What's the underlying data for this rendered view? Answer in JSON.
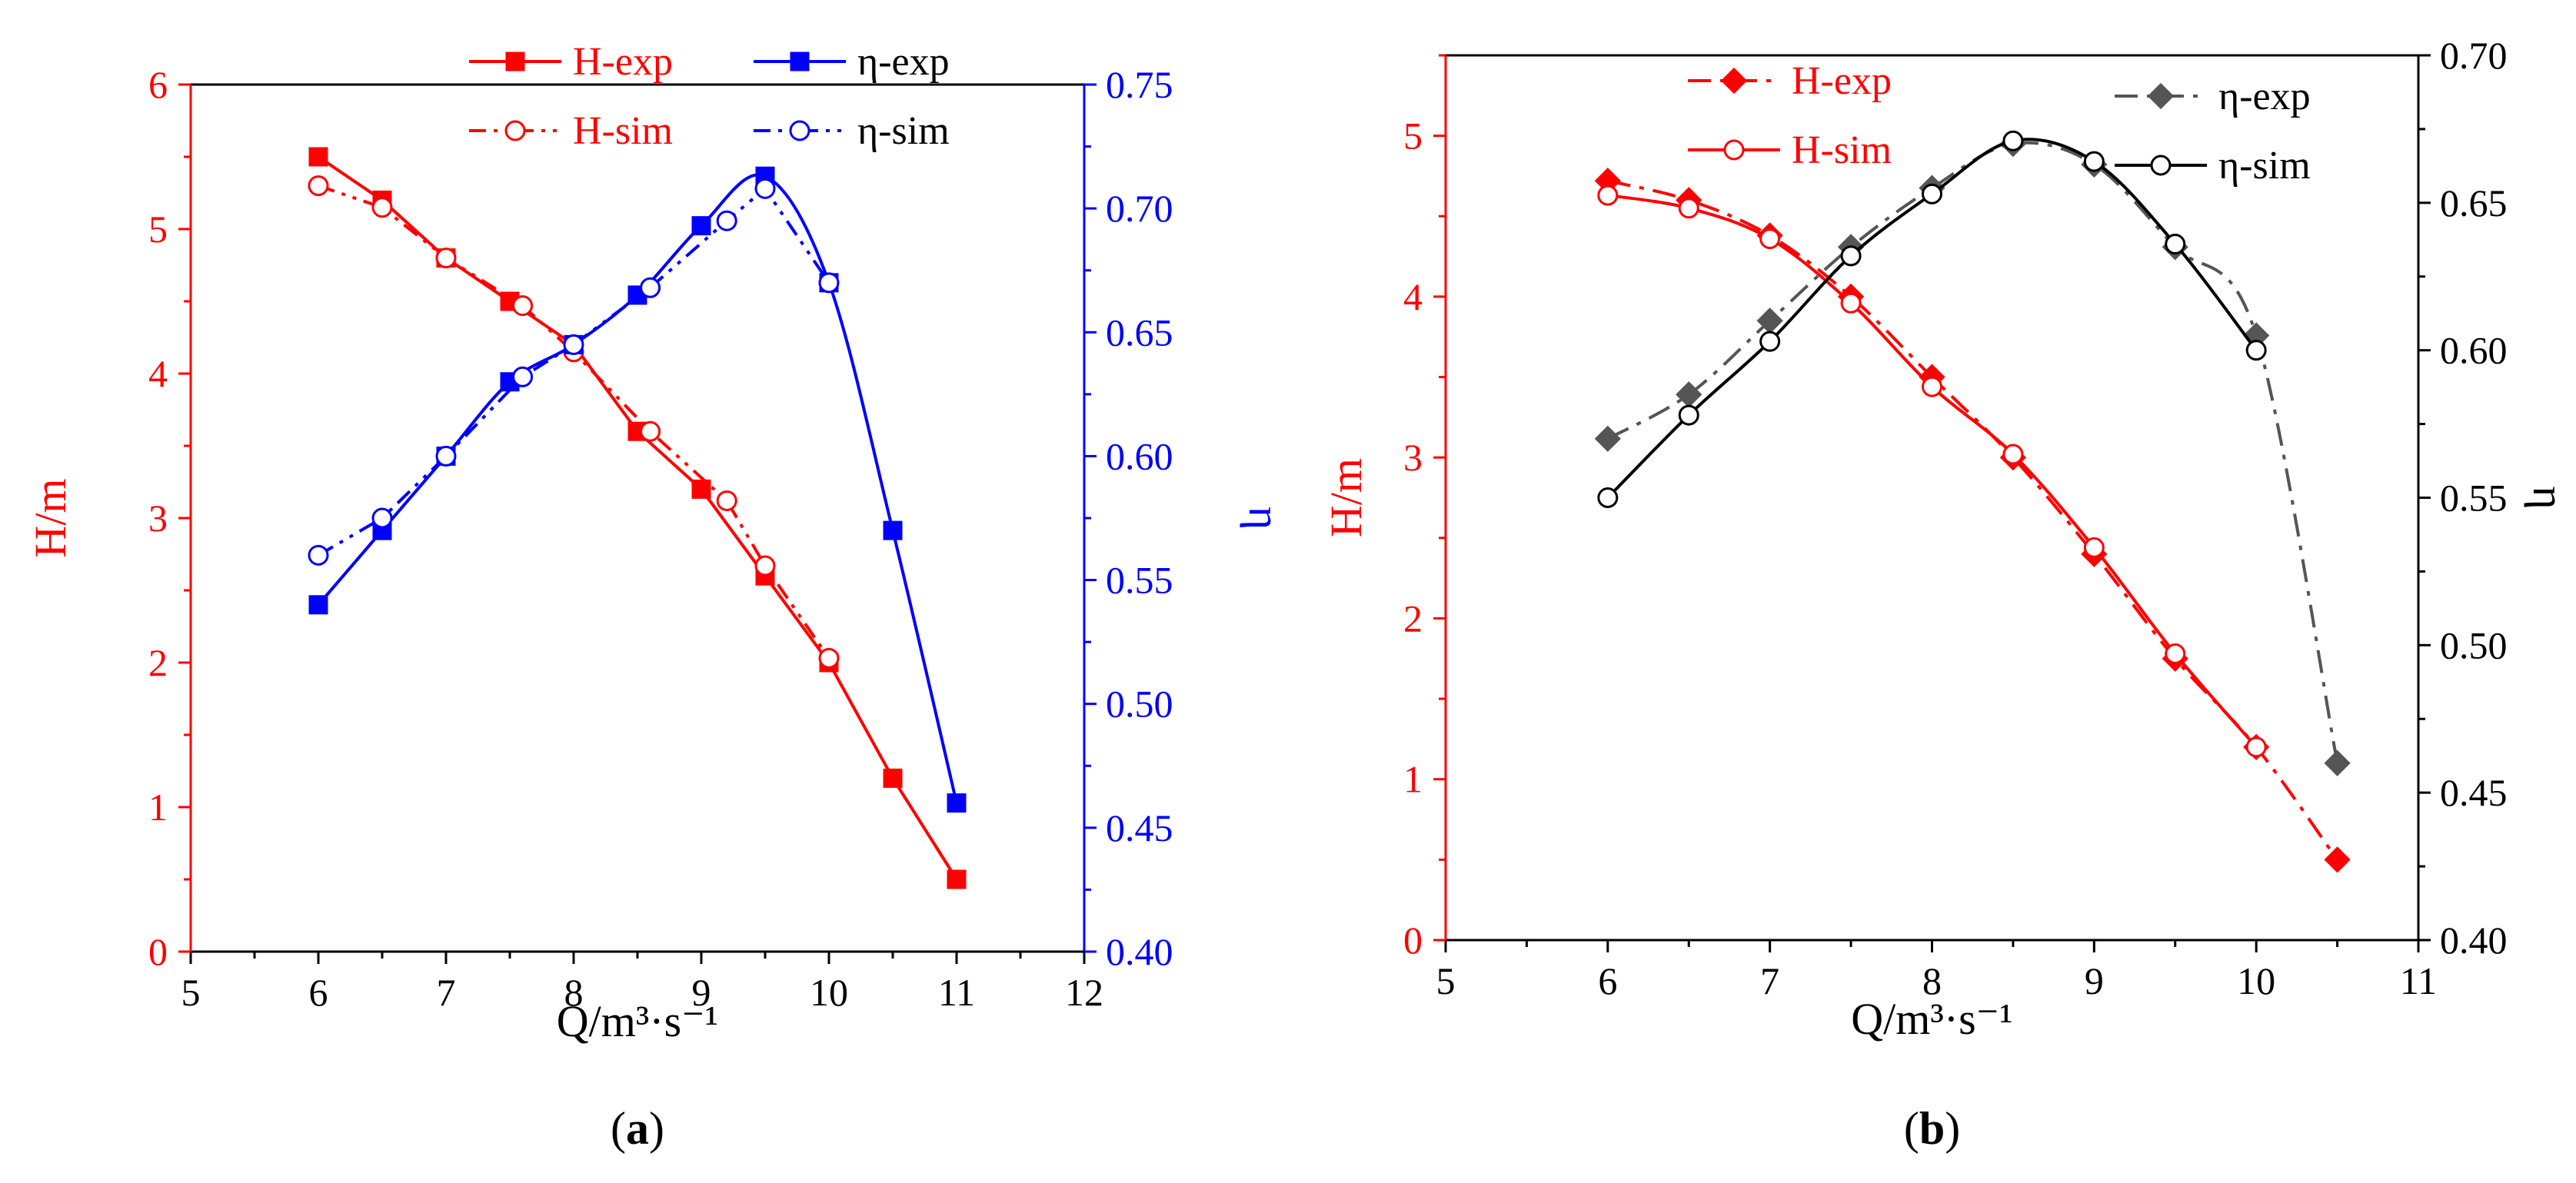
{
  "colors": {
    "red": "#ff0000",
    "blue": "#0000ff",
    "black": "#000000",
    "gray": "#555555"
  },
  "chart_data": [
    {
      "id": "a",
      "type": "line",
      "caption": "(a)",
      "caption_letter": "a",
      "xlabel": "Q/m³·s⁻¹",
      "ylabel_left": "H/m",
      "ylabel_right": "η",
      "xlim": [
        5,
        12
      ],
      "ylim_left": [
        0,
        6
      ],
      "ylim_right": [
        0.4,
        0.75
      ],
      "x_ticks": [
        "5",
        "6",
        "7",
        "8",
        "9",
        "10",
        "11",
        "12"
      ],
      "y_left_ticks": [
        "0",
        "1",
        "2",
        "3",
        "4",
        "5",
        "6"
      ],
      "y_right_ticks": [
        "0.40",
        "0.45",
        "0.50",
        "0.55",
        "0.60",
        "0.65",
        "0.70",
        "0.75"
      ],
      "legend": [
        {
          "label": "H-exp",
          "series": "H-exp"
        },
        {
          "label": "η-exp",
          "series": "η-exp"
        },
        {
          "label": "H-sim",
          "series": "H-sim"
        },
        {
          "label": "η-sim",
          "series": "η-sim"
        }
      ],
      "series": [
        {
          "name": "H-exp",
          "axis": "left",
          "color": "#ff0000",
          "marker": "square",
          "filled": true,
          "dash": "solid",
          "smooth": false,
          "x": [
            6,
            6.5,
            7,
            7.5,
            8,
            8.5,
            9,
            9.5,
            10,
            10.5,
            11
          ],
          "y": [
            5.5,
            5.2,
            4.8,
            4.5,
            4.2,
            3.6,
            3.2,
            2.6,
            2.0,
            1.2,
            0.5
          ]
        },
        {
          "name": "H-sim",
          "axis": "left",
          "color": "#ff0000",
          "marker": "circle",
          "filled": false,
          "dash": "dashdotdot",
          "smooth": false,
          "x": [
            6,
            6.5,
            7,
            7.6,
            8,
            8.6,
            9.2,
            9.5,
            10
          ],
          "y": [
            5.3,
            5.15,
            4.8,
            4.47,
            4.15,
            3.6,
            3.12,
            2.67,
            2.03
          ]
        },
        {
          "name": "η-exp",
          "axis": "right",
          "color": "#0000ff",
          "marker": "square",
          "filled": true,
          "dash": "solid",
          "smooth": true,
          "x": [
            6,
            6.5,
            7,
            7.5,
            8,
            8.5,
            9,
            9.5,
            10,
            10.5,
            11
          ],
          "y": [
            0.54,
            0.57,
            0.6,
            0.63,
            0.645,
            0.665,
            0.693,
            0.713,
            0.67,
            0.57,
            0.46
          ]
        },
        {
          "name": "η-sim",
          "axis": "right",
          "color": "#0000ff",
          "marker": "circle",
          "filled": false,
          "dash": "dashdotdot",
          "smooth": false,
          "x": [
            6,
            6.5,
            7,
            7.6,
            8,
            8.6,
            9.2,
            9.5,
            10
          ],
          "y": [
            0.56,
            0.575,
            0.6,
            0.632,
            0.645,
            0.668,
            0.695,
            0.708,
            0.67
          ]
        }
      ]
    },
    {
      "id": "b",
      "type": "line",
      "caption": "(b)",
      "caption_letter": "b",
      "xlabel": "Q/m³·s⁻¹",
      "ylabel_left": "H/m",
      "ylabel_right": "η",
      "xlim": [
        5,
        11
      ],
      "ylim_left": [
        0,
        5.5
      ],
      "ylim_right": [
        0.4,
        0.7
      ],
      "x_ticks": [
        "5",
        "6",
        "7",
        "8",
        "9",
        "10",
        "11"
      ],
      "y_left_ticks": [
        "0",
        "1",
        "2",
        "3",
        "4",
        "5"
      ],
      "y_right_ticks": [
        "0.40",
        "0.45",
        "0.50",
        "0.55",
        "0.60",
        "0.65",
        "0.70"
      ],
      "legend": [
        {
          "label": "H-exp",
          "series": "H-exp"
        },
        {
          "label": "H-sim",
          "series": "H-sim"
        },
        {
          "label": "η-exp",
          "series": "η-exp"
        },
        {
          "label": "η-sim",
          "series": "η-sim"
        }
      ],
      "series": [
        {
          "name": "H-exp",
          "axis": "left",
          "color": "#ff0000",
          "marker": "diamond",
          "filled": true,
          "dash": "dashdot",
          "smooth": true,
          "x": [
            6,
            6.5,
            7,
            7.5,
            8,
            8.5,
            9,
            9.5,
            10,
            10.5
          ],
          "y": [
            4.72,
            4.6,
            4.38,
            4.0,
            3.5,
            3.0,
            2.4,
            1.75,
            1.2,
            0.5
          ]
        },
        {
          "name": "H-sim",
          "axis": "left",
          "color": "#ff0000",
          "marker": "circle",
          "filled": false,
          "dash": "solid",
          "smooth": true,
          "x": [
            6,
            6.5,
            7,
            7.5,
            8,
            8.5,
            9,
            9.5,
            10
          ],
          "y": [
            4.63,
            4.55,
            4.36,
            3.96,
            3.44,
            3.02,
            2.44,
            1.78,
            1.2
          ]
        },
        {
          "name": "η-exp",
          "axis": "right",
          "color": "#555555",
          "marker": "diamond",
          "filled": true,
          "dash": "dashdot",
          "smooth": true,
          "x": [
            6,
            6.5,
            7,
            7.5,
            8,
            8.5,
            9,
            9.5,
            10,
            10.5
          ],
          "y": [
            0.57,
            0.585,
            0.61,
            0.635,
            0.655,
            0.67,
            0.663,
            0.635,
            0.605,
            0.46
          ]
        },
        {
          "name": "η-sim",
          "axis": "right",
          "color": "#000000",
          "marker": "circle",
          "filled": false,
          "dash": "solid",
          "smooth": true,
          "x": [
            6,
            6.5,
            7,
            7.5,
            8,
            8.5,
            9,
            9.5,
            10
          ],
          "y": [
            0.55,
            0.578,
            0.603,
            0.632,
            0.653,
            0.671,
            0.664,
            0.636,
            0.6
          ]
        }
      ]
    }
  ]
}
